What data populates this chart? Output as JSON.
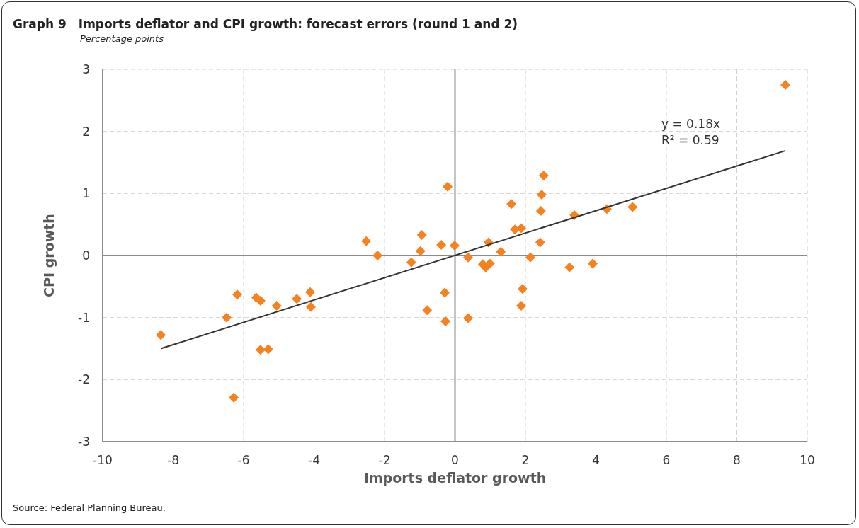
{
  "chart_data": {
    "type": "scatter",
    "title": "Graph 9 Imports deflator and CPI growth: forecast errors (round 1 and 2)",
    "subtitle": "Percentage points",
    "xlabel": "Imports deflator growth",
    "ylabel": "CPI growth",
    "xlim": [
      -10,
      10
    ],
    "xticks": [
      -10,
      -8,
      -6,
      -4,
      -2,
      0,
      2,
      4,
      6,
      8,
      10
    ],
    "ylim": [
      -3,
      3
    ],
    "yticks": [
      -3,
      -2,
      -1,
      0,
      1,
      2,
      3
    ],
    "grid": true,
    "legend": false,
    "marker": "diamond",
    "series": [
      {
        "color": "#f5821f",
        "x": [
          -8.35,
          -6.48,
          -6.18,
          -6.28,
          -5.64,
          -5.52,
          -5.52,
          -5.3,
          -5.06,
          -4.49,
          -4.11,
          -4.09,
          -2.52,
          -2.2,
          -1.24,
          -0.94,
          -0.98,
          -0.79,
          -0.39,
          -0.29,
          -0.27,
          -0.21,
          -0.01,
          0.37,
          0.37,
          0.79,
          0.87,
          0.99,
          0.95,
          1.3,
          1.6,
          1.7,
          1.88,
          1.92,
          1.88,
          2.14,
          2.44,
          2.46,
          2.52,
          2.42,
          3.25,
          3.39,
          3.91,
          4.31,
          5.04,
          9.38
        ],
        "values": [
          -1.28,
          -1.0,
          -0.63,
          -2.29,
          -0.68,
          -0.73,
          -1.52,
          -1.51,
          -0.81,
          -0.7,
          -0.59,
          -0.83,
          0.23,
          0.0,
          -0.11,
          0.33,
          0.07,
          -0.88,
          0.17,
          -0.6,
          -1.06,
          1.11,
          0.16,
          -0.03,
          -1.01,
          -0.14,
          -0.19,
          -0.13,
          0.21,
          0.06,
          0.83,
          0.42,
          0.44,
          -0.54,
          -0.81,
          -0.03,
          0.72,
          0.98,
          1.29,
          0.21,
          -0.19,
          0.65,
          -0.13,
          0.75,
          0.78,
          2.75
        ]
      },
      {
        "type": "line",
        "color": "#333333",
        "marker": "none",
        "x": [
          -8.35,
          9.38
        ],
        "values": [
          -1.5,
          1.69
        ]
      }
    ],
    "annotations": [
      "y = 0.18x",
      "R² = 0.59",
      "Source: Federal Planning Bureau."
    ]
  }
}
